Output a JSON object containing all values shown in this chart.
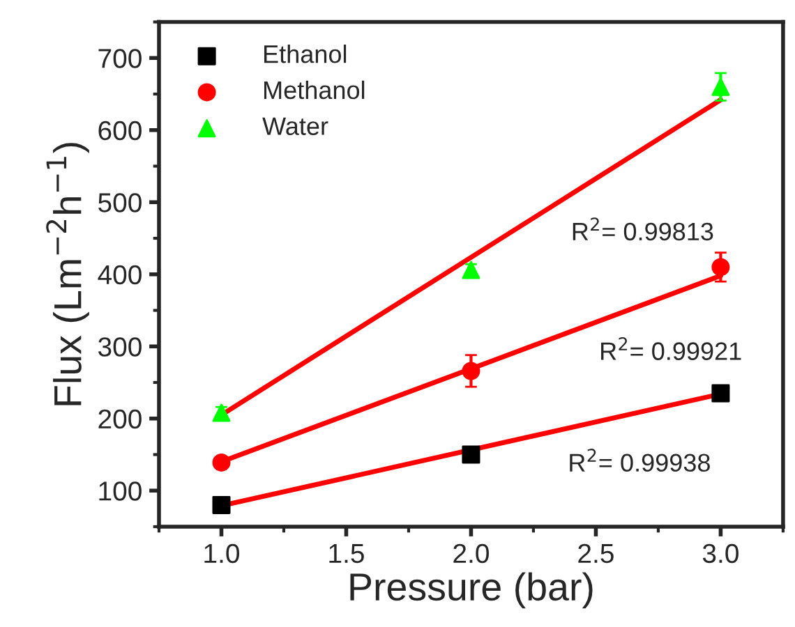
{
  "chart_data": {
    "type": "scatter",
    "xlabel": "Pressure (bar)",
    "ylabel": "Flux (Lm$^{−2}$h$^{−1}$)",
    "xlim": [
      0.75,
      3.25
    ],
    "xticks": [
      {
        "value": 1.0,
        "label": "1.0"
      },
      {
        "value": 1.5,
        "label": "1.5"
      },
      {
        "value": 2.0,
        "label": "2.0"
      },
      {
        "value": 2.5,
        "label": "2.5"
      },
      {
        "value": 3.0,
        "label": "3.0"
      }
    ],
    "ylim": [
      50,
      750
    ],
    "yticks": [
      100,
      200,
      300,
      400,
      500,
      600,
      700
    ],
    "legend": "top left",
    "grid": false,
    "series": [
      {
        "name": "Ethanol",
        "marker": "square",
        "color": "#000000",
        "x": [
          1,
          2,
          3
        ],
        "values": [
          80,
          150,
          235
        ],
        "errors": [
          8,
          8,
          8
        ]
      },
      {
        "name": "Methanol",
        "marker": "circle",
        "color": "#ff0000",
        "x": [
          1,
          2,
          3
        ],
        "values": [
          139,
          266,
          410
        ],
        "errors": [
          8,
          22,
          20
        ]
      },
      {
        "name": "Water",
        "marker": "triangle",
        "color": "#00ff00",
        "x": [
          1,
          2,
          3
        ],
        "values": [
          208,
          406,
          660
        ],
        "errors": [
          8,
          8,
          19
        ]
      },
      {
        "type": "line",
        "color": "#ff0000",
        "x": [
          1,
          3
        ],
        "values": [
          79,
          234
        ]
      },
      {
        "type": "line",
        "color": "#ff0000",
        "x": [
          1,
          3
        ],
        "values": [
          140,
          398
        ]
      },
      {
        "type": "line",
        "color": "#ff0000",
        "x": [
          1,
          3
        ],
        "values": [
          205,
          642
        ]
      }
    ],
    "annotations": [
      "R$^{2}$= 0.99813",
      "R$^{2}$= 0.99921",
      "R$^{2}$= 0.99938"
    ]
  }
}
